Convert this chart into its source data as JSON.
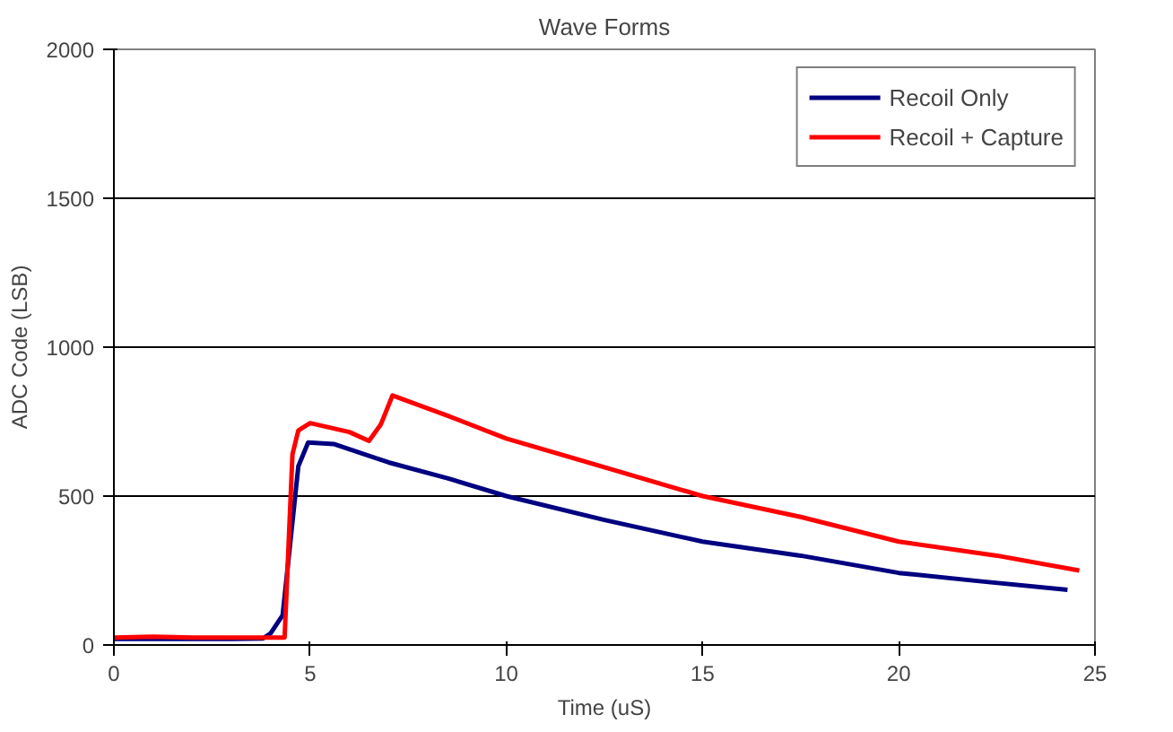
{
  "chart_data": {
    "type": "line",
    "title": "Wave Forms",
    "xlabel": "Time (uS)",
    "ylabel": "ADC Code (LSB)",
    "xlim": [
      0,
      25
    ],
    "xticks": [
      0,
      5,
      10,
      15,
      20,
      25
    ],
    "ylim": [
      0,
      2000
    ],
    "yticks": [
      0,
      500,
      1000,
      1500,
      2000
    ],
    "grid": "y",
    "legend": "top right",
    "marker": "none",
    "line_style": "solid",
    "series": [
      {
        "name": "Recoil Only",
        "color": "#000080",
        "x": [
          0,
          1,
          2,
          3,
          3.8,
          4.0,
          4.2,
          4.3,
          4.5,
          4.7,
          4.95,
          5.6,
          7,
          8.5,
          10,
          12.5,
          15,
          17.5,
          20,
          22,
          24.3
        ],
        "values": [
          20,
          20,
          20,
          20,
          22,
          40,
          80,
          100,
          350,
          600,
          680,
          675,
          613,
          560,
          500,
          420,
          347,
          300,
          242,
          215,
          185
        ]
      },
      {
        "name": "Recoil + Capture",
        "color": "#ff0000",
        "x": [
          0,
          1,
          2,
          3,
          4.0,
          4.35,
          4.55,
          4.7,
          5.0,
          6.0,
          6.5,
          6.8,
          7.1,
          8.5,
          10,
          12.5,
          15,
          17.5,
          20,
          22.5,
          24.6
        ],
        "values": [
          25,
          28,
          25,
          25,
          25,
          25,
          640,
          720,
          745,
          715,
          685,
          740,
          838,
          770,
          693,
          597,
          500,
          430,
          347,
          300,
          250
        ]
      }
    ]
  }
}
